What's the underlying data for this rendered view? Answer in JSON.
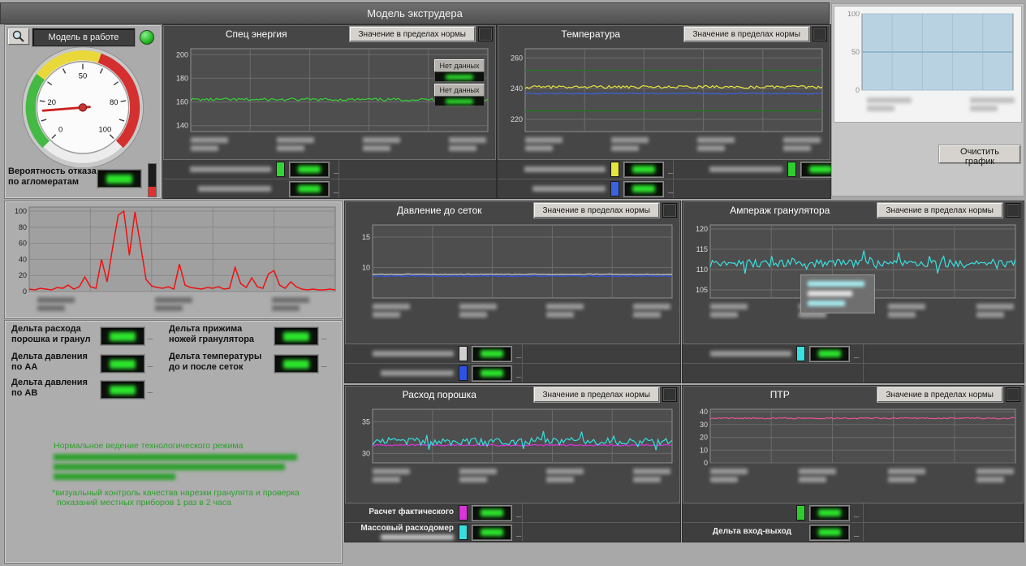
{
  "title_bar": {
    "title": "Модель экструдера"
  },
  "buttons": {
    "norm": "Значение в пределах нормы",
    "clear": "Очистить график",
    "no_data": "Нет данных"
  },
  "misc": {
    "dash": "_"
  },
  "top_left": {
    "status_label": "Модель в работе",
    "probability_label": "Вероятность отказа\nпо агломератам",
    "gauge": {
      "min": 0,
      "max": 100,
      "value": 15,
      "labels": [
        0,
        20,
        50,
        80,
        100
      ]
    }
  },
  "panels": {
    "spets": {
      "title": "Спец энергия"
    },
    "temp": {
      "title": "Температура"
    },
    "davlenie": {
      "title": "Давление до сеток"
    },
    "amperazh": {
      "title": "Ампераж гранулятора"
    },
    "rashod": {
      "title": "Расход порошка"
    },
    "ptr": {
      "title": "ПТР"
    }
  },
  "legends": {
    "rashod_row1": "Расчет фактического",
    "rashod_row2": "Массовый расходомер",
    "ptr_row2": "Дельта вход-выход"
  },
  "chips": {
    "temp_right": "#2ecc2e",
    "ptr_row1": "#2ecc2e"
  },
  "delta_panel": {
    "items": [
      {
        "label": "Дельта расхода\nпорошка и гранул"
      },
      {
        "label": "Дельта прижима\nножей гранулятора"
      },
      {
        "label": "Дельта давления\nпо АА"
      },
      {
        "label": "Дельта температуры\nдо и после сеток"
      },
      {
        "label": "Дельта давления\nпо АВ"
      }
    ],
    "status_line": "Нормальное ведение технологического режима",
    "note_line1": "*визуальный контроль качества нарезки гранулята и проверка",
    "note_line2": "показаний местных приборов 1 раз в 2 часа"
  },
  "charts": {
    "spets": {
      "ylim": [
        135,
        205
      ],
      "yticks": [
        140,
        160,
        180,
        200
      ],
      "series": [
        {
          "color": "#35d435",
          "base": 162,
          "noise": 1.2,
          "seed": 11
        }
      ]
    },
    "temp": {
      "ylim": [
        212,
        266
      ],
      "yticks": [
        220,
        240,
        260
      ],
      "limits": [
        {
          "value": 252,
          "color": "#1f7a1f"
        },
        {
          "value": 225.5,
          "color": "#1f7a1f"
        }
      ],
      "series": [
        {
          "color": "#e6e63c",
          "base": 241,
          "noise": 0.9,
          "seed": 5
        },
        {
          "color": "#3b62e0",
          "base": 236.8,
          "noise": 0.35,
          "seed": 8
        }
      ]
    },
    "davlenie": {
      "ylim": [
        5,
        17
      ],
      "yticks": [
        10,
        15
      ],
      "series": [
        {
          "color": "#cfcfcf",
          "base": 8.9,
          "noise": 0.06,
          "seed": 4
        },
        {
          "color": "#2d52e8",
          "base": 8.6,
          "noise": 0.1,
          "seed": 6
        }
      ]
    },
    "amperazh": {
      "ylim": [
        103,
        121
      ],
      "yticks": [
        105,
        110,
        115,
        120
      ],
      "series": [
        {
          "color": "#3ae0e0",
          "base": 111.6,
          "noise": 1.0,
          "seed": 13,
          "spiky": true
        }
      ]
    },
    "rashod": {
      "ylim": [
        28.5,
        37
      ],
      "yticks": [
        30,
        35
      ],
      "series": [
        {
          "color": "#d935d9",
          "base": 31.3,
          "noise": 0.12,
          "seed": 3
        },
        {
          "color": "#38dede",
          "base": 31.9,
          "noise": 0.6,
          "seed": 9,
          "spiky": true
        }
      ]
    },
    "ptr": {
      "ylim": [
        0,
        42
      ],
      "yticks": [
        0,
        10,
        20,
        30,
        40
      ],
      "series": [
        {
          "color": "#e8559a",
          "base": 35,
          "noise": 0.5,
          "seed": 7
        }
      ]
    },
    "failure": {
      "plot": "light",
      "ylim": [
        0,
        105
      ],
      "yticks": [
        0,
        20,
        40,
        60,
        80,
        100
      ],
      "series": [
        {
          "color": "#ee1111",
          "width": 1.5,
          "values": [
            3,
            2,
            4,
            3,
            2,
            5,
            4,
            8,
            3,
            6,
            18,
            6,
            4,
            40,
            12,
            55,
            95,
            100,
            45,
            99,
            58,
            15,
            7,
            5,
            4,
            6,
            3,
            34,
            8,
            5,
            4,
            3,
            5,
            4,
            6,
            3,
            4,
            30,
            10,
            5,
            17,
            6,
            4,
            22,
            26,
            8,
            4,
            12,
            6,
            3,
            2,
            3,
            2,
            2,
            3,
            2
          ]
        }
      ]
    },
    "mini": {
      "plot": "mini",
      "ml": 26,
      "ylim": [
        0,
        100
      ],
      "yticks": [
        0,
        50,
        100
      ],
      "limits": [
        {
          "value": 50,
          "color": "#7fa6bd"
        }
      ],
      "series": []
    }
  }
}
